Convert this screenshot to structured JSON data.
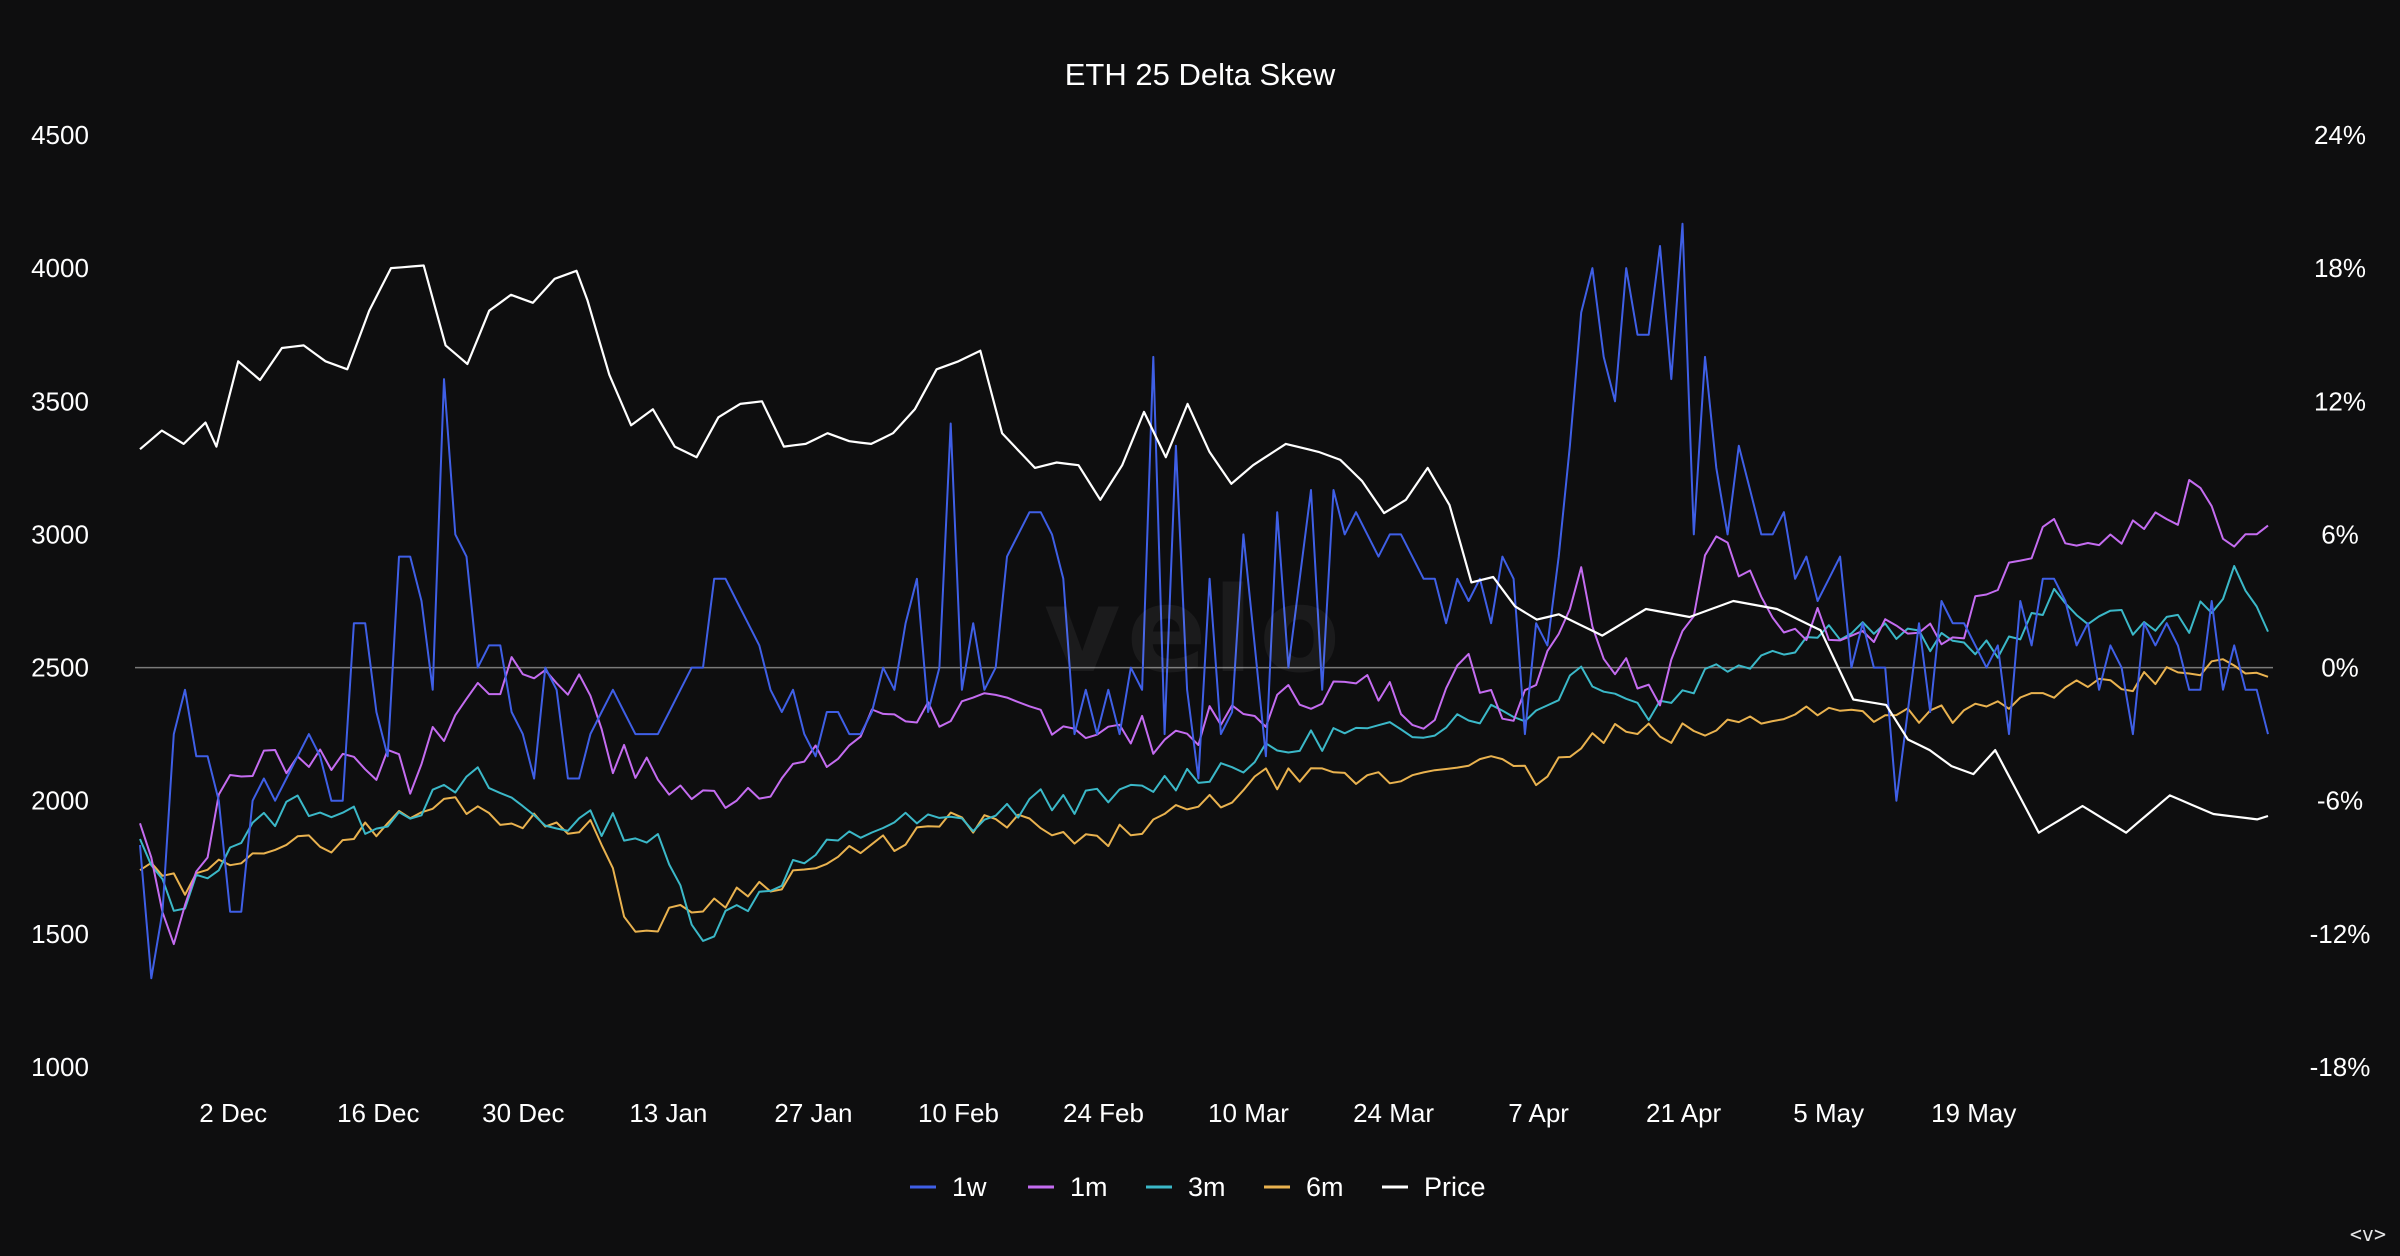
{
  "watermark": "velo",
  "nav_glyph": "<v>",
  "chart_data": {
    "type": "line",
    "title": "ETH 25 Delta Skew",
    "x_labels": [
      "2 Dec",
      "16 Dec",
      "30 Dec",
      "13 Jan",
      "27 Jan",
      "10 Feb",
      "24 Feb",
      "10 Mar",
      "24 Mar",
      "7 Apr",
      "21 Apr",
      "5 May",
      "19 May"
    ],
    "x_start": "2024-11-23",
    "left_axis": {
      "ticks": [
        1000,
        1500,
        2000,
        2500,
        3000,
        3500,
        4000,
        4500
      ],
      "range": [
        1000,
        4500
      ]
    },
    "right_axis": {
      "ticks": [
        "-18%",
        "-12%",
        "-6%",
        "0%",
        "6%",
        "12%",
        "18%",
        "24%"
      ],
      "range": [
        -18,
        24
      ]
    },
    "zero_line": 0,
    "legend_position": "bottom",
    "series": [
      {
        "name": "1w",
        "color": "#3f5fe6",
        "axis": "right",
        "values": [
          -8,
          -14,
          -11,
          -3,
          -1,
          -4,
          -4,
          -6,
          -11,
          -11,
          -6,
          -5,
          -6,
          -5,
          -4,
          -3,
          -4,
          -6,
          -6,
          2,
          2,
          -2,
          -4,
          5,
          5,
          3,
          -1,
          13,
          6,
          5,
          0,
          1,
          1,
          -2,
          -3,
          -5,
          0,
          -1,
          -5,
          -5,
          -3,
          -2,
          -1,
          -2,
          -3,
          -3,
          -3,
          -2,
          -1,
          0,
          0,
          4,
          4,
          3,
          2,
          1,
          -1,
          -2,
          -1,
          -3,
          -4,
          -2,
          -2,
          -3,
          -3,
          -2,
          0,
          -1,
          2,
          4,
          -2,
          0,
          11,
          -1,
          2,
          -1,
          0,
          5,
          6,
          7,
          7,
          6,
          4,
          -3,
          -1,
          -3,
          -1,
          -3,
          0,
          -1,
          14,
          -3,
          10,
          -1,
          -5,
          4,
          -3,
          -2,
          6,
          1,
          -4,
          7,
          0,
          4,
          8,
          -1,
          8,
          6,
          7,
          6,
          5,
          6,
          6,
          5,
          4,
          4,
          2,
          4,
          3,
          4,
          2,
          5,
          4,
          -3,
          2,
          1,
          5,
          10,
          16,
          18,
          14,
          12,
          18,
          15,
          15,
          19,
          13,
          20,
          6,
          14,
          9,
          6,
          10,
          8,
          6,
          6,
          7,
          4,
          5,
          3,
          4,
          5,
          0,
          2,
          0,
          0,
          -6,
          -2,
          2,
          -2,
          3,
          2,
          2,
          1,
          0,
          1,
          -3,
          3,
          1,
          4,
          4,
          3,
          1,
          2,
          -1,
          1,
          0,
          -3,
          2,
          1,
          2,
          1,
          -1,
          -1,
          3,
          -1,
          1,
          -1,
          -1,
          -3
        ],
        "note": ""
      },
      {
        "name": "1m",
        "color": "#c46cf0",
        "axis": "right"
      },
      {
        "name": "3m",
        "color": "#3bb8c8",
        "axis": "right"
      },
      {
        "name": "6m",
        "color": "#e9b24f",
        "axis": "right"
      },
      {
        "name": "Price",
        "color": "#ffffff",
        "axis": "left"
      }
    ]
  }
}
